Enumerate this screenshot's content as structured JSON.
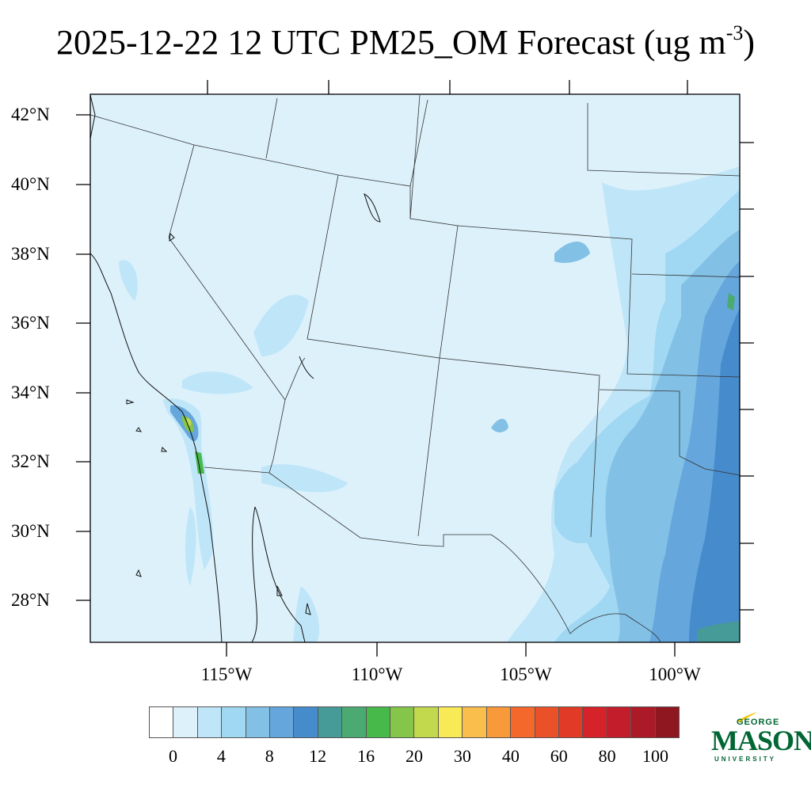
{
  "title": {
    "main": "2025-12-22 12 UTC PM25_OM Forecast (ug m",
    "superscript": "-3",
    "close": ")"
  },
  "latitude_labels": [
    "42°N",
    "40°N",
    "38°N",
    "36°N",
    "34°N",
    "32°N",
    "30°N",
    "28°N"
  ],
  "longitude_labels": [
    "115°W",
    "110°W",
    "105°W",
    "100°W"
  ],
  "colorbar": {
    "colors": [
      "#ffffff",
      "#ddf1fb",
      "#bfe6f8",
      "#a0d7f2",
      "#83c0e6",
      "#65a6dc",
      "#468bcb",
      "#469a98",
      "#4aaa72",
      "#47b94a",
      "#84c54a",
      "#c2d84d",
      "#f8e957",
      "#f9be4b",
      "#f89a39",
      "#f4692b",
      "#ea5128",
      "#e13b28",
      "#d62229",
      "#c31c2a",
      "#ac1a28",
      "#8f1720"
    ],
    "tick_labels": [
      "0",
      "4",
      "8",
      "12",
      "16",
      "20",
      "30",
      "40",
      "60",
      "80",
      "100"
    ]
  },
  "logo": {
    "george": "GEORGE",
    "mason": "MASON",
    "university": "UNIVERSITY"
  }
}
